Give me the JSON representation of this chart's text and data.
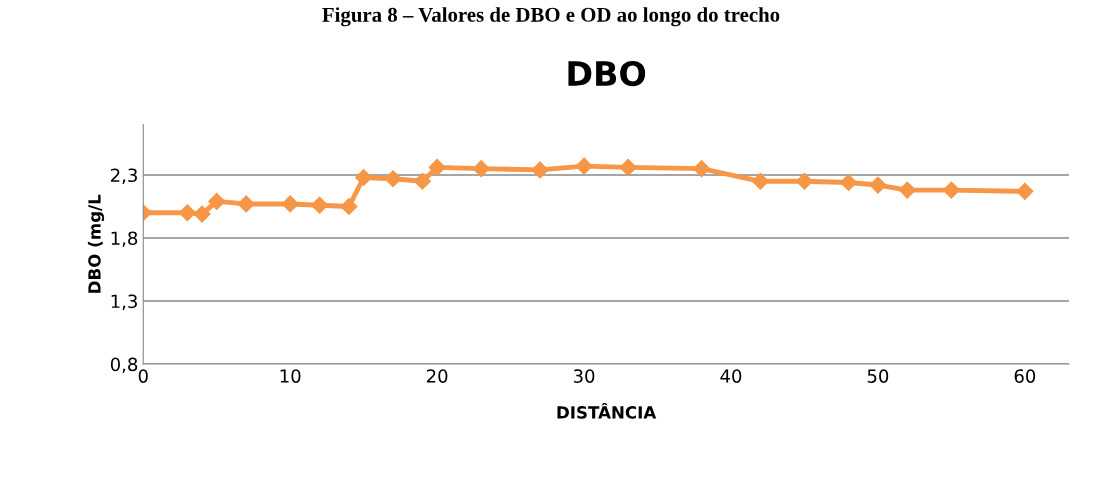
{
  "chart_data": {
    "type": "line",
    "title": "DBO",
    "xlabel": "DISTÂNCIA",
    "ylabel": "DBO (mg/L",
    "annotations": [
      "Figura 8 – Valores de DBO e OD ao longo do trecho"
    ],
    "x": [
      0,
      3,
      4,
      5,
      7,
      10,
      12,
      14,
      15,
      17,
      19,
      20,
      23,
      27,
      30,
      33,
      38,
      42,
      45,
      48,
      50,
      52,
      55,
      60
    ],
    "series": [
      {
        "color": "#f79646",
        "values": [
          2.0,
          2.0,
          1.99,
          2.09,
          2.07,
          2.07,
          2.06,
          2.05,
          2.28,
          2.27,
          2.25,
          2.36,
          2.35,
          2.34,
          2.37,
          2.36,
          2.35,
          2.25,
          2.25,
          2.24,
          2.22,
          2.18,
          2.18,
          2.17
        ]
      }
    ],
    "xlim": [
      0,
      63
    ],
    "xticks": [
      0,
      10,
      20,
      30,
      40,
      50,
      60
    ],
    "ylim": [
      0.8,
      2.7
    ],
    "yticks": [
      {
        "value": 0.8,
        "label": "0,8"
      },
      {
        "value": 1.3,
        "label": "1,3"
      },
      {
        "value": 1.8,
        "label": "1,8"
      },
      {
        "value": 2.3,
        "label": "2,3"
      }
    ],
    "grid": "y",
    "marker": "diamond",
    "line_style": "solid",
    "legend": false
  }
}
